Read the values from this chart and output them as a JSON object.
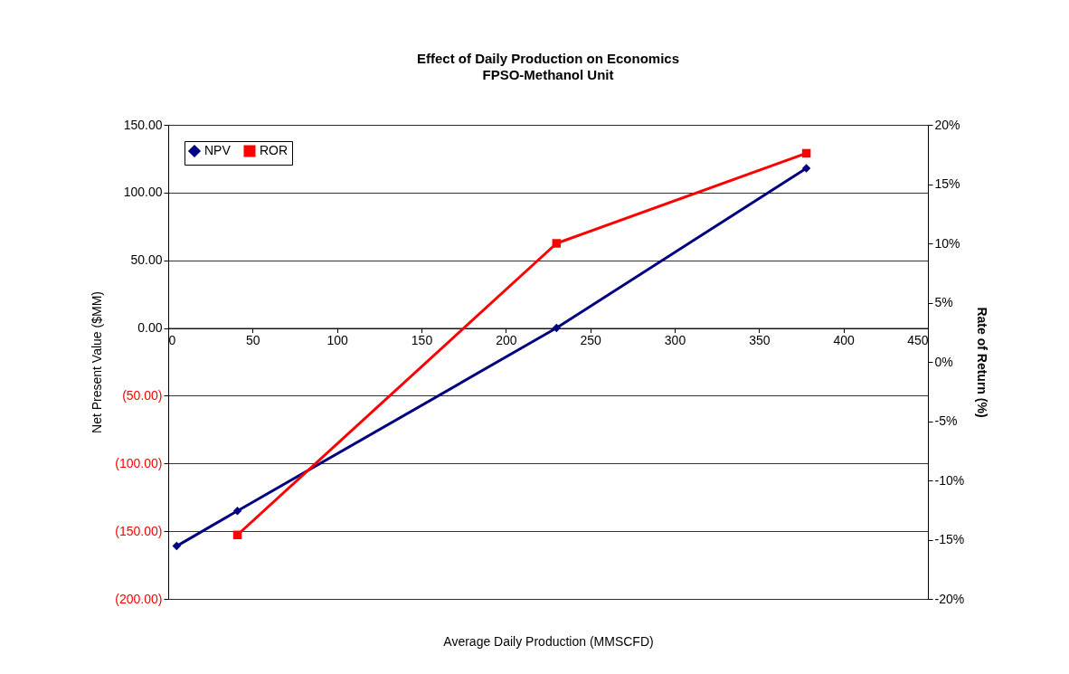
{
  "chart_data": {
    "type": "line",
    "title": "Effect of Daily Production on Economics",
    "subtitle": "FPSO-Methanol Unit",
    "xlabel": "Average Daily Production (MMSCFD)",
    "ylabel": "Net Present Value ($MM)",
    "y2label": "Rate of Return (%)",
    "xlim": [
      0,
      450
    ],
    "xticks": [
      0,
      50,
      100,
      150,
      200,
      250,
      300,
      350,
      400,
      450
    ],
    "ylim": [
      -200,
      150
    ],
    "yticks": [
      {
        "value": -200,
        "label": "(200.00)"
      },
      {
        "value": -150,
        "label": "(150.00)"
      },
      {
        "value": -100,
        "label": "(100.00)"
      },
      {
        "value": -50,
        "label": "(50.00)"
      },
      {
        "value": 0,
        "label": "0.00"
      },
      {
        "value": 50,
        "label": "50.00"
      },
      {
        "value": 100,
        "label": "100.00"
      },
      {
        "value": 150,
        "label": "150.00"
      }
    ],
    "y2lim": [
      -20,
      20
    ],
    "y2ticks": [
      {
        "value": -20,
        "label": "-20%"
      },
      {
        "value": -15,
        "label": "-15%"
      },
      {
        "value": -10,
        "label": "-10%"
      },
      {
        "value": -5,
        "label": "-5%"
      },
      {
        "value": 0,
        "label": "0%"
      },
      {
        "value": 5,
        "label": "5%"
      },
      {
        "value": 10,
        "label": "10%"
      },
      {
        "value": 15,
        "label": "15%"
      },
      {
        "value": 20,
        "label": "20%"
      }
    ],
    "grid": "y",
    "legend": "top left",
    "line_style": "solid",
    "series": [
      {
        "name": "NPV",
        "color": "#000080",
        "marker": "diamond",
        "x": [
          5,
          41,
          230,
          378
        ],
        "values": [
          -161,
          -135,
          0,
          118
        ]
      },
      {
        "name": "ROR",
        "color": "#ff0000",
        "marker": "square",
        "axis": "y2",
        "x": [
          41,
          230,
          378
        ],
        "values": [
          -14.6,
          10,
          17.6
        ]
      }
    ]
  }
}
